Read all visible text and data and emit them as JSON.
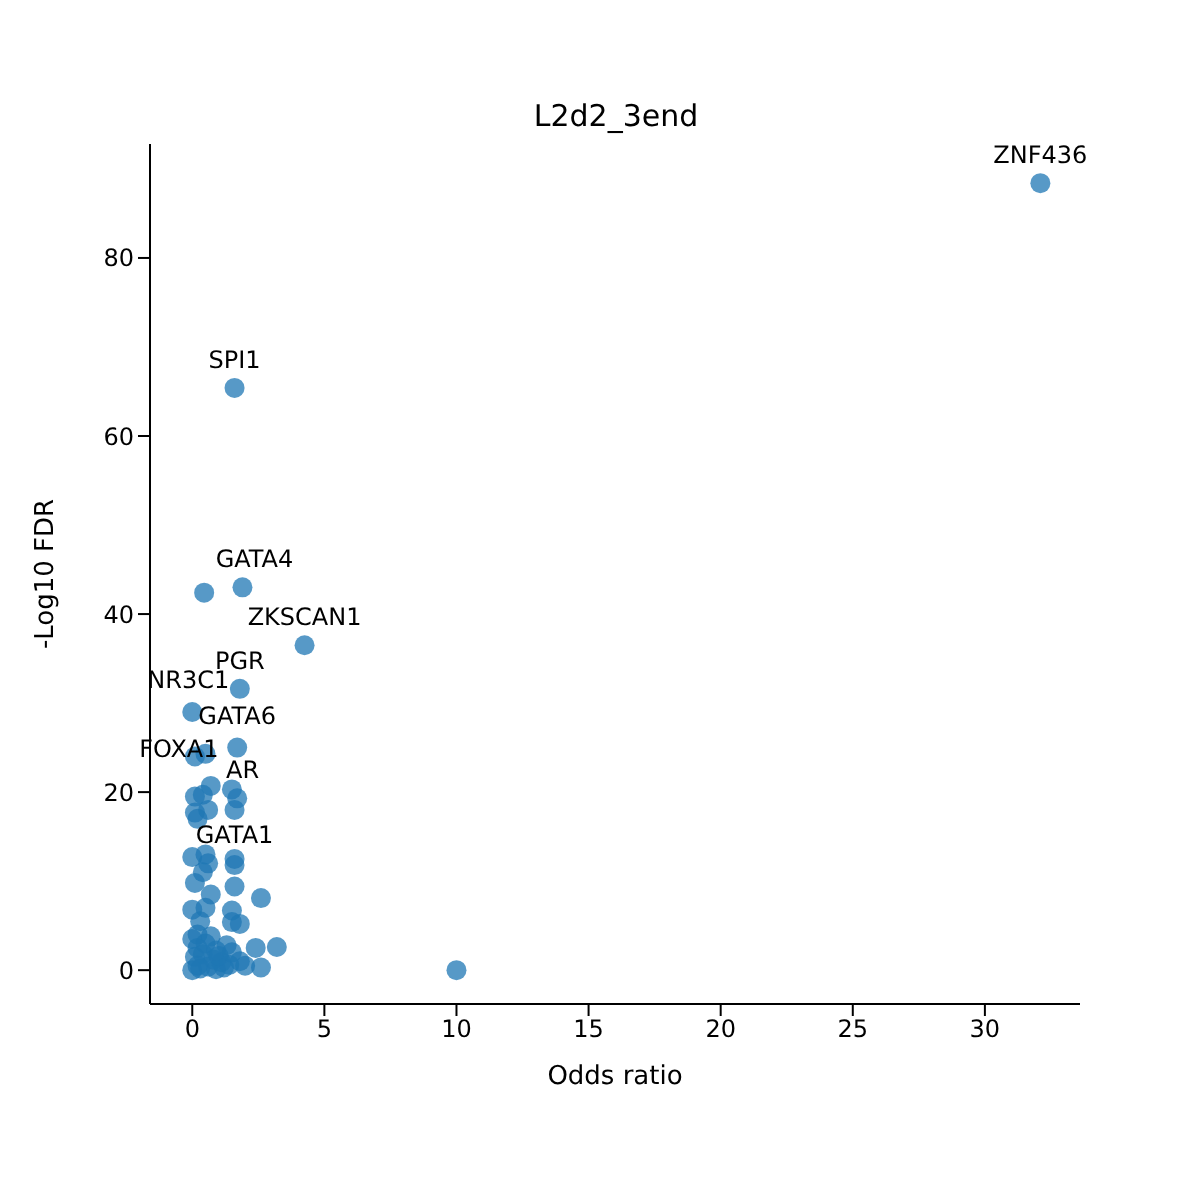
{
  "chart_data": {
    "type": "scatter",
    "title": "L2d2_3end",
    "xlabel": "Odds ratio",
    "ylabel": "-Log10 FDR",
    "xlim": [
      -1.6,
      33.6
    ],
    "ylim": [
      -3.8,
      92.8
    ],
    "xticks": [
      0,
      5,
      10,
      15,
      20,
      25,
      30
    ],
    "yticks": [
      0,
      20,
      40,
      60,
      80
    ],
    "grid": false,
    "marker": "circle",
    "color": "#1f77b4",
    "x": [
      32.1,
      1.6,
      1.9,
      0.45,
      4.25,
      1.8,
      0,
      1.7,
      0.1,
      0.5,
      0.7,
      1.5,
      1.7,
      1.6,
      0.6,
      0.1,
      0.2,
      0.1,
      0.4,
      0,
      0.5,
      0.6,
      0.4,
      1.6,
      1.6,
      1.6,
      2.6,
      0.1,
      0.7,
      0.5,
      1.5,
      1.5,
      1.8,
      0,
      0.3,
      0.2,
      2.4,
      3.2,
      2.6,
      2,
      1.8,
      10,
      0,
      0.3,
      0.6,
      0.9,
      1.2,
      0.1,
      0.4,
      0.8,
      1.1,
      1.4,
      0.2,
      0.5,
      0.9,
      1.3,
      0,
      0.7,
      1.0,
      1.5,
      0.2
    ],
    "values": [
      88.4,
      65.4,
      43.0,
      42.4,
      36.5,
      31.6,
      29,
      25,
      24,
      24.3,
      20.7,
      20.3,
      19.3,
      18,
      18,
      17.7,
      17,
      19.5,
      19.7,
      12.7,
      13,
      12,
      11,
      12.5,
      11.8,
      9.4,
      8.1,
      9.8,
      8.5,
      7,
      6.7,
      5.4,
      5.2,
      6.8,
      5.5,
      4,
      2.5,
      2.6,
      0.3,
      0.5,
      1,
      0,
      0,
      0.2,
      0.4,
      0.1,
      0.3,
      1.5,
      1.8,
      1.2,
      0.9,
      0.6,
      2.5,
      3,
      2.2,
      2.8,
      3.5,
      3.8,
      1.6,
      2,
      0.5
    ],
    "annotations": [
      {
        "text": "ZNF436",
        "x": 32.1,
        "y": 88.4
      },
      {
        "text": "SPI1",
        "x": 1.6,
        "y": 65.4
      },
      {
        "text": "GATA4",
        "x": 1.9,
        "y": 43.0
      },
      {
        "text": "ZKSCAN1",
        "x": 4.25,
        "y": 36.5
      },
      {
        "text": "PGR",
        "x": 1.8,
        "y": 31.6
      },
      {
        "text": "NR3C1",
        "x": 0,
        "y": 29
      },
      {
        "text": "GATA6",
        "x": 1.7,
        "y": 25
      },
      {
        "text": "FOXA1",
        "x": 0.1,
        "y": 19.5
      },
      {
        "text": "AR",
        "x": 1.6,
        "y": 18
      },
      {
        "text": "GATA1",
        "x": 1.6,
        "y": 17
      }
    ]
  }
}
